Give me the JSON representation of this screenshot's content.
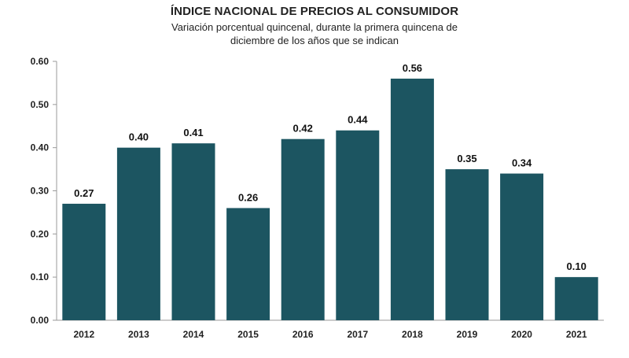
{
  "chart_data": {
    "type": "bar",
    "title": "ÍNDICE NACIONAL DE PRECIOS AL CONSUMIDOR",
    "subtitle": "Variación porcentual quincenal, durante la primera quincena de diciembre de los años que se indican",
    "categories": [
      "2012",
      "2013",
      "2014",
      "2015",
      "2016",
      "2017",
      "2018",
      "2019",
      "2020",
      "2021"
    ],
    "values": [
      0.27,
      0.4,
      0.41,
      0.26,
      0.42,
      0.44,
      0.56,
      0.35,
      0.34,
      0.1
    ],
    "data_labels": [
      "0.27",
      "0.40",
      "0.41",
      "0.26",
      "0.42",
      "0.44",
      "0.56",
      "0.35",
      "0.34",
      "0.10"
    ],
    "y_ticks": [
      "0.00",
      "0.10",
      "0.20",
      "0.30",
      "0.40",
      "0.50",
      "0.60"
    ],
    "ylim": [
      0,
      0.6
    ],
    "xlabel": "",
    "ylabel": "",
    "grid": false,
    "legend": "none",
    "bar_color": "#1c5561"
  }
}
